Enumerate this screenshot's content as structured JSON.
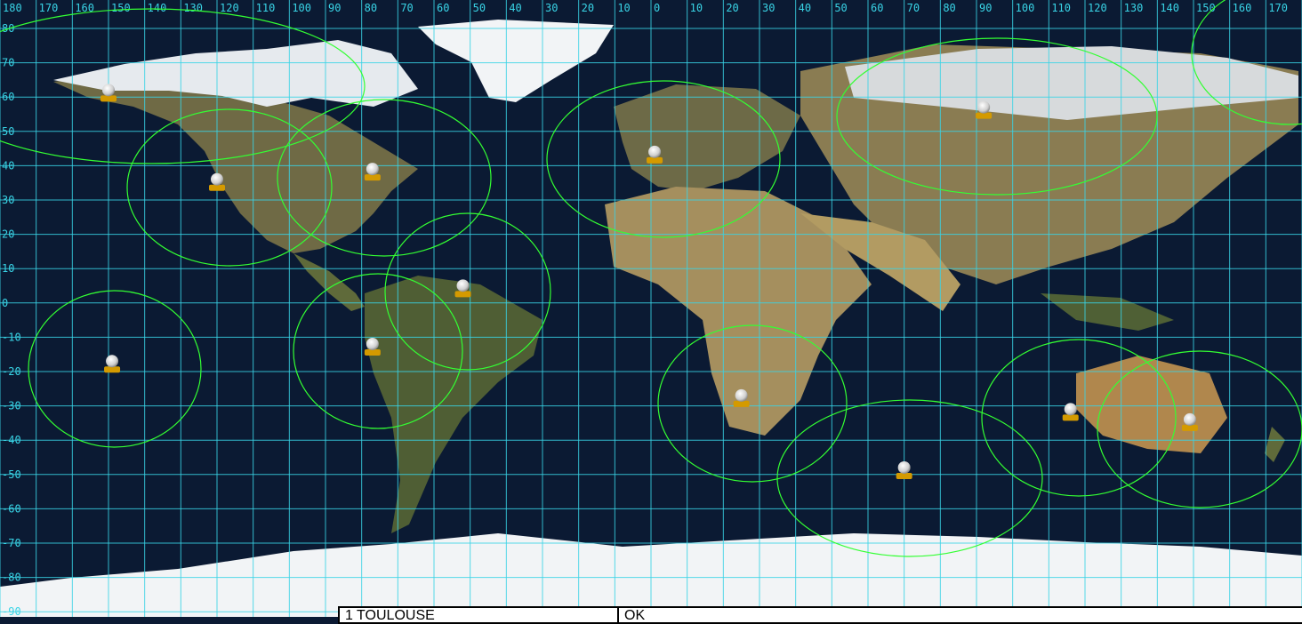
{
  "map": {
    "longitude_labels": [
      "180",
      "170",
      "160",
      "150",
      "140",
      "130",
      "120",
      "110",
      "100",
      "90",
      "80",
      "70",
      "60",
      "50",
      "40",
      "30",
      "20",
      "10",
      "0",
      "10",
      "20",
      "30",
      "40",
      "50",
      "60",
      "70",
      "80",
      "90",
      "100",
      "110",
      "120",
      "130",
      "140",
      "150",
      "160",
      "170"
    ],
    "latitude_labels": [
      "80",
      "70",
      "60",
      "50",
      "40",
      "30",
      "20",
      "10",
      "0",
      "-10",
      "-20",
      "-30",
      "-40",
      "-50",
      "-60",
      "-70",
      "-80",
      "-90"
    ],
    "colors": {
      "grid": "#39d4e6",
      "coverage": "#33ff33",
      "ocean": "#0b1a33",
      "land": "#7d7047",
      "ice": "#f2f4f6",
      "station_dome": "#f0f0f0",
      "station_base": "#d49a00"
    },
    "ground_stations": [
      {
        "name": "station-alaska",
        "lon": -150,
        "lat": 61
      },
      {
        "name": "station-california",
        "lon": -120,
        "lat": 35
      },
      {
        "name": "station-east-us",
        "lon": -77,
        "lat": 38
      },
      {
        "name": "station-brazil-north",
        "lon": -52,
        "lat": 4
      },
      {
        "name": "station-peru",
        "lon": -77,
        "lat": -13
      },
      {
        "name": "station-pacific",
        "lon": -149,
        "lat": -18
      },
      {
        "name": "station-toulouse",
        "lon": 1,
        "lat": 43
      },
      {
        "name": "station-south-africa",
        "lon": 25,
        "lat": -28
      },
      {
        "name": "station-kerguelen",
        "lon": 70,
        "lat": -49
      },
      {
        "name": "station-siberia",
        "lon": 92,
        "lat": 56
      },
      {
        "name": "station-west-australia",
        "lon": 116,
        "lat": -32
      },
      {
        "name": "station-east-australia",
        "lon": 149,
        "lat": -35
      }
    ]
  },
  "status_bar": {
    "station": "1 TOULOUSE",
    "state": "OK"
  }
}
